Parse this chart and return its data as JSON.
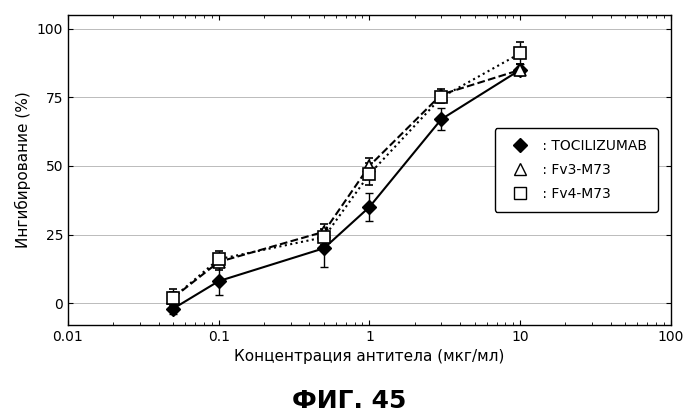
{
  "tocilizumab_x": [
    0.05,
    0.1,
    0.5,
    1.0,
    3.0,
    10.0
  ],
  "tocilizumab_y": [
    -2,
    8,
    20,
    35,
    67,
    85
  ],
  "tocilizumab_yerr": [
    2,
    5,
    7,
    5,
    4,
    2
  ],
  "fv3_x": [
    0.05,
    0.1,
    0.5,
    1.0,
    3.0,
    10.0
  ],
  "fv3_y": [
    2,
    15,
    26,
    50,
    76,
    85
  ],
  "fv3_yerr": [
    3,
    3,
    3,
    3,
    2,
    2
  ],
  "fv4_x": [
    0.05,
    0.1,
    0.5,
    1.0,
    3.0,
    10.0
  ],
  "fv4_y": [
    2,
    16,
    24,
    47,
    75,
    91
  ],
  "fv4_yerr": [
    2,
    3,
    3,
    4,
    2,
    4
  ],
  "xlabel": "Концентрация антитела (мкг/мл)",
  "ylabel": "Ингибирование (%)",
  "title": "ФИГ. 45",
  "ylim": [
    -8,
    105
  ],
  "xlim": [
    0.01,
    100
  ],
  "yticks": [
    0,
    25,
    50,
    75,
    100
  ],
  "xticks": [
    0.01,
    0.1,
    1,
    10,
    100
  ],
  "xtick_labels": [
    "0.01",
    "0.1",
    "1",
    "10",
    "100"
  ],
  "legend_tocilizumab": " : TOCILIZUMAB",
  "legend_fv3": " : Fv3-M73",
  "legend_fv4": " : Fv4-M73",
  "background_color": "#ffffff"
}
